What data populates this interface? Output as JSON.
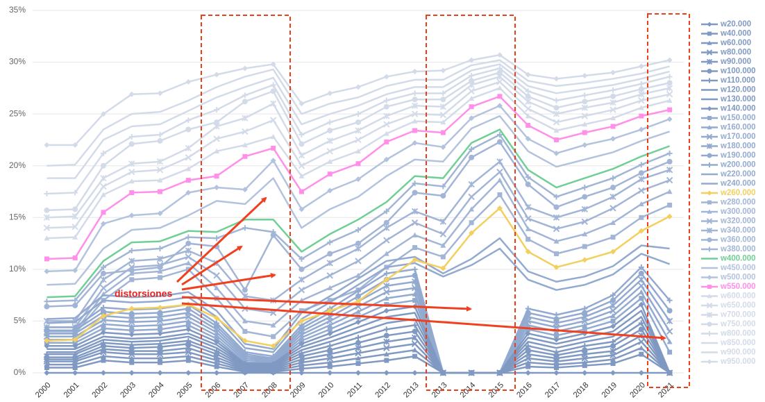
{
  "chart_data": {
    "type": "line",
    "annotation": "distorsiones",
    "categories": [
      "2000",
      "2001",
      "2002",
      "2003",
      "2004",
      "2005",
      "2006",
      "2007",
      "2008",
      "2009",
      "2010",
      "2011",
      "2012",
      "2013",
      "2013",
      "2014",
      "2015",
      "2016",
      "2017",
      "2018",
      "2019",
      "2020",
      "2021"
    ],
    "ylim": [
      0,
      35
    ],
    "yticks": [
      {
        "value": 0,
        "label": "0%"
      },
      {
        "value": 5,
        "label": "5%"
      },
      {
        "value": 10,
        "label": "10%"
      },
      {
        "value": 15,
        "label": "15%"
      },
      {
        "value": 20,
        "label": "20%"
      },
      {
        "value": 25,
        "label": "25%"
      },
      {
        "value": 30,
        "label": "30%"
      },
      {
        "value": 35,
        "label": "35%"
      }
    ],
    "grid": true,
    "legend": "right",
    "series": [
      {
        "name": "w20.000",
        "color": "#8099c2",
        "marker": "diamond",
        "values": [
          0,
          0,
          0,
          0,
          0,
          0,
          0,
          0,
          0,
          0,
          0,
          0,
          0,
          0,
          0,
          0,
          0,
          0,
          0,
          0,
          0,
          0,
          0
        ]
      },
      {
        "name": "w40.000",
        "color": "#8099c2",
        "marker": "square",
        "values": [
          0.5,
          0.5,
          1.2,
          1.0,
          1.0,
          1.2,
          0.6,
          0.1,
          0.1,
          0.4,
          0.6,
          0.9,
          1.2,
          1.6,
          0,
          0,
          0,
          0.6,
          0.5,
          0.7,
          0.9,
          1.8,
          0
        ]
      },
      {
        "name": "w60.000",
        "color": "#8099c2",
        "marker": "triangle",
        "values": [
          0.8,
          0.8,
          1.6,
          1.4,
          1.4,
          1.6,
          0.9,
          0.2,
          0.2,
          0.7,
          1.0,
          1.4,
          1.8,
          2.2,
          0,
          0,
          0,
          1.0,
          0.8,
          1.0,
          1.3,
          2.4,
          0
        ]
      },
      {
        "name": "w80.000",
        "color": "#8099c2",
        "marker": "x",
        "values": [
          1.1,
          1.1,
          2.0,
          1.8,
          1.8,
          2.0,
          1.2,
          0.3,
          0.3,
          1.0,
          1.4,
          1.9,
          2.4,
          2.8,
          0,
          0,
          0,
          1.4,
          1.1,
          1.4,
          1.7,
          3.0,
          0
        ]
      },
      {
        "name": "w90.000",
        "color": "#8099c2",
        "marker": "star",
        "values": [
          1.3,
          1.3,
          2.3,
          2.1,
          2.1,
          2.4,
          1.5,
          0.4,
          0.4,
          1.3,
          1.8,
          2.4,
          3.0,
          3.4,
          0,
          0,
          0,
          1.8,
          1.4,
          1.8,
          2.1,
          3.6,
          0
        ]
      },
      {
        "name": "w100.000",
        "color": "#8099c2",
        "marker": "circle",
        "values": [
          1.5,
          1.5,
          2.6,
          2.4,
          2.5,
          2.8,
          1.8,
          0.5,
          0.5,
          1.6,
          2.2,
          2.9,
          3.6,
          4.0,
          0,
          0,
          0,
          2.2,
          1.7,
          2.2,
          2.6,
          4.2,
          0
        ]
      },
      {
        "name": "w110.000",
        "color": "#8099c2",
        "marker": "plus",
        "values": [
          1.8,
          1.8,
          2.9,
          2.7,
          2.8,
          3.1,
          2.1,
          0.6,
          0.6,
          1.9,
          2.6,
          3.4,
          4.2,
          4.6,
          0,
          0,
          0,
          2.6,
          2.0,
          2.6,
          3.0,
          4.8,
          0
        ]
      },
      {
        "name": "w120.000",
        "color": "#8099c2",
        "marker": "none",
        "values": [
          2.0,
          2.0,
          3.2,
          3.0,
          3.1,
          3.5,
          2.4,
          0.7,
          0.7,
          2.2,
          3.0,
          3.9,
          4.8,
          5.2,
          0,
          0,
          0,
          3.0,
          2.4,
          3.0,
          3.5,
          5.4,
          0
        ]
      },
      {
        "name": "w130.000",
        "color": "#8099c2",
        "marker": "none",
        "values": [
          2.3,
          2.3,
          3.5,
          3.3,
          3.4,
          3.8,
          2.7,
          0.8,
          0.8,
          2.5,
          3.4,
          4.4,
          5.4,
          5.8,
          0,
          0,
          0,
          3.4,
          2.8,
          3.4,
          4.0,
          6.0,
          0
        ]
      },
      {
        "name": "w140.000",
        "color": "#8099c2",
        "marker": "diamond",
        "values": [
          2.6,
          2.6,
          3.9,
          3.7,
          3.8,
          4.2,
          3.0,
          0.9,
          0.9,
          2.8,
          3.8,
          4.9,
          6.0,
          6.4,
          0,
          0,
          0,
          3.8,
          3.2,
          3.8,
          4.5,
          6.6,
          0
        ]
      },
      {
        "name": "w150.000",
        "color": "#93aad0",
        "marker": "square",
        "values": [
          2.9,
          2.9,
          4.3,
          4.1,
          4.2,
          4.6,
          3.3,
          1.0,
          1.0,
          3.1,
          4.2,
          5.4,
          6.6,
          7.0,
          0,
          0,
          0,
          4.2,
          3.6,
          4.2,
          5.0,
          7.2,
          2.0
        ]
      },
      {
        "name": "w160.000",
        "color": "#93aad0",
        "marker": "triangle",
        "values": [
          3.2,
          3.2,
          4.7,
          4.5,
          4.6,
          5.0,
          3.6,
          1.2,
          1.1,
          3.4,
          4.6,
          5.9,
          7.2,
          7.6,
          0,
          0,
          0,
          4.6,
          4.0,
          4.6,
          5.5,
          7.8,
          3.0
        ]
      },
      {
        "name": "w170.000",
        "color": "#93aad0",
        "marker": "x",
        "values": [
          3.5,
          3.5,
          5.1,
          4.9,
          5.0,
          5.4,
          3.9,
          1.4,
          1.2,
          3.7,
          5.0,
          6.4,
          7.8,
          8.2,
          0,
          0,
          0,
          5.0,
          4.4,
          5.0,
          6.0,
          8.4,
          4.0
        ]
      },
      {
        "name": "w180.000",
        "color": "#93aad0",
        "marker": "star",
        "values": [
          3.8,
          3.8,
          5.5,
          5.3,
          5.4,
          5.8,
          4.2,
          1.6,
          1.3,
          4.0,
          5.4,
          6.9,
          8.4,
          8.8,
          0,
          0,
          0,
          5.4,
          4.8,
          5.4,
          6.5,
          9.0,
          5.0
        ]
      },
      {
        "name": "w190.000",
        "color": "#93aad0",
        "marker": "circle",
        "values": [
          4.1,
          4.1,
          5.9,
          5.7,
          5.8,
          6.2,
          4.5,
          1.8,
          1.4,
          4.3,
          5.8,
          7.4,
          9.0,
          9.4,
          0,
          0,
          0,
          5.8,
          5.2,
          5.8,
          7.0,
          9.6,
          6.0
        ]
      },
      {
        "name": "w200.000",
        "color": "#93aad0",
        "marker": "plus",
        "values": [
          4.4,
          4.4,
          6.3,
          6.1,
          6.2,
          6.6,
          4.8,
          2.0,
          1.6,
          4.6,
          6.2,
          7.9,
          9.6,
          10.0,
          0,
          0,
          0,
          6.2,
          5.6,
          6.2,
          7.5,
          10.2,
          7.0
        ]
      },
      {
        "name": "w220.000",
        "color": "#93aad0",
        "marker": "none",
        "values": [
          4.8,
          4.9,
          7.0,
          6.8,
          6.9,
          7.3,
          5.4,
          2.4,
          2.0,
          5.2,
          6.8,
          8.5,
          10.2,
          10.6,
          9.3,
          10.4,
          12.0,
          9.0,
          8.0,
          8.5,
          9.5,
          11.5,
          10.5
        ]
      },
      {
        "name": "w240.000",
        "color": "#93aad0",
        "marker": "none",
        "values": [
          5.2,
          5.3,
          7.5,
          7.3,
          7.4,
          7.8,
          6.0,
          2.8,
          2.3,
          5.8,
          7.4,
          9.1,
          10.8,
          11.2,
          9.6,
          11.0,
          13.0,
          9.8,
          8.8,
          9.3,
          10.3,
          12.3,
          12.0
        ]
      },
      {
        "name": "w260.000",
        "color": "#f2cf5e",
        "marker": "diamond",
        "values": [
          3.1,
          3.2,
          5.5,
          6.2,
          6.3,
          6.6,
          5.3,
          3.1,
          2.6,
          5.0,
          6.0,
          6.9,
          9.0,
          10.9,
          10.1,
          13.5,
          15.9,
          11.7,
          10.2,
          10.9,
          11.7,
          13.7,
          15.1
        ]
      },
      {
        "name": "w280.000",
        "color": "#a2b5d6",
        "marker": "square",
        "values": [
          3.8,
          3.8,
          7.0,
          9.0,
          9.2,
          10.0,
          7.2,
          4.0,
          3.5,
          6.0,
          7.0,
          8.0,
          10.2,
          12.1,
          11.2,
          14.5,
          17.2,
          12.9,
          11.5,
          12.2,
          13.1,
          15.0,
          16.2
        ]
      },
      {
        "name": "w300.000",
        "color": "#a2b5d6",
        "marker": "triangle",
        "values": [
          4.0,
          4.0,
          7.6,
          9.6,
          9.8,
          10.6,
          8.2,
          5.0,
          4.6,
          7.0,
          8.2,
          9.4,
          11.5,
          13.3,
          12.3,
          15.8,
          18.6,
          13.9,
          12.7,
          13.4,
          14.5,
          16.3,
          17.5
        ]
      },
      {
        "name": "w320.000",
        "color": "#a2b5d6",
        "marker": "x",
        "values": [
          4.4,
          4.4,
          8.2,
          10.2,
          10.4,
          11.2,
          9.4,
          6.2,
          5.8,
          8.0,
          9.4,
          10.8,
          12.8,
          14.5,
          13.4,
          17.0,
          19.4,
          14.9,
          13.9,
          14.6,
          15.9,
          17.6,
          18.6
        ]
      },
      {
        "name": "w340.000",
        "color": "#a2b5d6",
        "marker": "star",
        "values": [
          5.0,
          5.0,
          9.0,
          10.8,
          11.0,
          11.8,
          10.6,
          7.4,
          7.0,
          9.0,
          10.6,
          12.0,
          14.0,
          15.6,
          14.6,
          18.2,
          20.4,
          16.0,
          15.0,
          15.8,
          17.0,
          18.7,
          19.6
        ]
      },
      {
        "name": "w360.000",
        "color": "#a2b5d6",
        "marker": "circle",
        "values": [
          6.4,
          6.5,
          9.6,
          9.9,
          10.2,
          12.5,
          12.2,
          8.0,
          13.3,
          10.0,
          11.5,
          12.5,
          14.5,
          17.4,
          17.1,
          20.8,
          22.3,
          18.2,
          16.0,
          17.0,
          17.9,
          19.3,
          20.4
        ]
      },
      {
        "name": "w380.000",
        "color": "#a2b5d6",
        "marker": "plus",
        "values": [
          6.9,
          7.0,
          10.2,
          11.8,
          12.0,
          13.1,
          13.0,
          14.0,
          13.6,
          11.0,
          12.6,
          13.8,
          15.6,
          18.3,
          18.0,
          21.6,
          23.0,
          18.9,
          17.0,
          17.9,
          18.8,
          20.1,
          21.2
        ]
      },
      {
        "name": "w400.000",
        "color": "#6fcf95",
        "marker": "none",
        "values": [
          7.3,
          7.4,
          10.8,
          12.6,
          12.7,
          13.7,
          13.6,
          14.8,
          14.8,
          11.7,
          13.4,
          14.8,
          16.5,
          19.0,
          18.8,
          22.2,
          23.5,
          19.6,
          17.9,
          18.8,
          19.7,
          20.9,
          21.9
        ]
      },
      {
        "name": "w450.000",
        "color": "#b4c3dd",
        "marker": "none",
        "values": [
          8.5,
          8.6,
          12.0,
          13.8,
          14.0,
          15.2,
          16.6,
          16.3,
          18.8,
          14.0,
          15.8,
          17.0,
          19.0,
          20.6,
          20.4,
          23.6,
          24.8,
          21.4,
          19.9,
          20.6,
          21.3,
          22.4,
          23.3
        ]
      },
      {
        "name": "w500.000",
        "color": "#b4c3dd",
        "marker": "diamond",
        "values": [
          9.8,
          9.9,
          14.4,
          15.2,
          15.4,
          17.4,
          17.9,
          17.7,
          20.5,
          15.8,
          17.6,
          18.7,
          20.6,
          22.2,
          21.8,
          24.6,
          25.8,
          22.6,
          21.2,
          22.0,
          22.6,
          23.5,
          24.5
        ]
      },
      {
        "name": "w550.000",
        "color": "#ff8fe8",
        "marker": "square",
        "values": [
          11.0,
          11.1,
          15.5,
          17.4,
          17.5,
          18.6,
          19.0,
          20.9,
          21.7,
          17.5,
          19.2,
          20.2,
          22.3,
          23.4,
          23.2,
          25.7,
          26.7,
          23.9,
          22.5,
          23.2,
          23.8,
          24.8,
          25.4
        ]
      },
      {
        "name": "w600.000",
        "color": "#d3dbe9",
        "marker": "triangle",
        "values": [
          13.0,
          13.1,
          17.2,
          18.5,
          18.6,
          19.7,
          21.4,
          22.0,
          22.8,
          19.0,
          20.4,
          21.4,
          23.1,
          24.3,
          24.2,
          26.5,
          27.5,
          24.8,
          23.4,
          24.0,
          24.6,
          25.6,
          26.3
        ]
      },
      {
        "name": "w650.000",
        "color": "#d3dbe9",
        "marker": "x",
        "values": [
          14.0,
          14.1,
          18.0,
          19.4,
          19.6,
          20.8,
          22.6,
          23.3,
          24.4,
          20.0,
          21.4,
          22.5,
          24.0,
          25.0,
          24.9,
          27.2,
          28.1,
          25.5,
          24.2,
          24.8,
          25.4,
          26.3,
          26.9
        ]
      },
      {
        "name": "w700.000",
        "color": "#d3dbe9",
        "marker": "star",
        "values": [
          15.0,
          15.1,
          18.8,
          20.2,
          20.4,
          21.7,
          23.8,
          24.6,
          26.0,
          21.0,
          22.4,
          23.4,
          24.8,
          25.8,
          25.7,
          27.8,
          28.6,
          26.2,
          25.0,
          25.6,
          26.1,
          26.9,
          27.5
        ]
      },
      {
        "name": "w750.000",
        "color": "#d3dbe9",
        "marker": "circle",
        "values": [
          15.7,
          15.8,
          20.0,
          22.1,
          22.4,
          23.5,
          24.2,
          26.2,
          27.2,
          22.1,
          23.4,
          24.2,
          25.7,
          26.4,
          26.4,
          28.2,
          29.0,
          26.7,
          25.6,
          26.2,
          26.7,
          27.4,
          28.0
        ]
      },
      {
        "name": "w800.000",
        "color": "#d3dbe9",
        "marker": "plus",
        "values": [
          17.3,
          17.4,
          21.2,
          22.8,
          23.0,
          24.4,
          25.4,
          26.8,
          27.8,
          23.0,
          24.2,
          25.0,
          26.3,
          27.0,
          27.0,
          28.7,
          29.4,
          27.2,
          26.3,
          26.8,
          27.3,
          27.9,
          28.6
        ]
      },
      {
        "name": "w850.000",
        "color": "#d3dbe9",
        "marker": "none",
        "values": [
          18.8,
          18.8,
          22.5,
          23.8,
          24.0,
          25.3,
          26.6,
          27.6,
          28.5,
          24.0,
          25.0,
          25.8,
          26.9,
          27.6,
          27.6,
          29.2,
          29.8,
          27.7,
          27.0,
          27.4,
          27.8,
          28.4,
          29.1
        ]
      },
      {
        "name": "w900.000",
        "color": "#d3dbe9",
        "marker": "none",
        "values": [
          20.0,
          20.1,
          23.5,
          25.0,
          25.2,
          26.3,
          27.6,
          28.6,
          29.3,
          25.0,
          26.0,
          26.6,
          27.7,
          28.3,
          28.3,
          29.7,
          30.2,
          28.2,
          27.7,
          28.0,
          28.4,
          28.9,
          29.6
        ]
      },
      {
        "name": "w950.000",
        "color": "#d3dbe9",
        "marker": "diamond",
        "values": [
          22.0,
          22.0,
          25.0,
          26.9,
          27.0,
          28.1,
          28.8,
          29.4,
          29.8,
          26.0,
          27.0,
          27.6,
          28.6,
          29.1,
          29.2,
          30.2,
          30.7,
          28.8,
          28.4,
          28.7,
          29.0,
          29.6,
          30.2
        ]
      }
    ]
  }
}
